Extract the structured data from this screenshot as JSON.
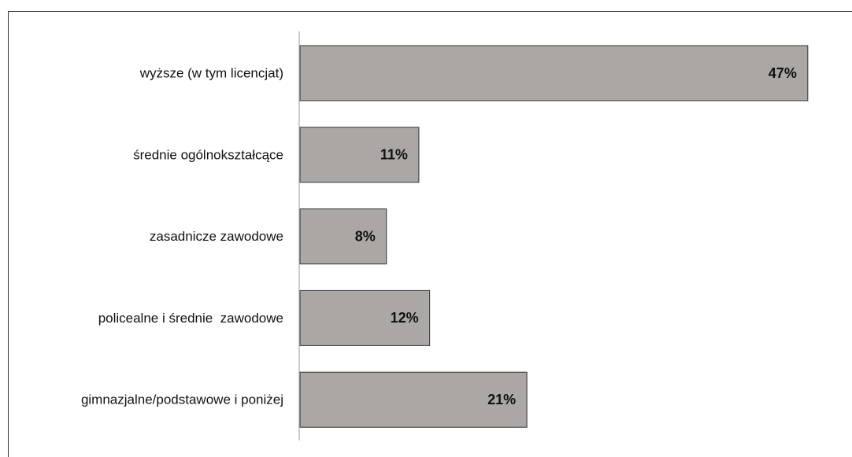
{
  "chart_data": {
    "type": "bar",
    "orientation": "horizontal",
    "categories": [
      "wyższe (w tym licencjat)",
      "średnie ogólnokształcące",
      "zasadnicze zawodowe",
      "policealne i średnie  zawodowe",
      "gimnazjalne/podstawowe i poniżej"
    ],
    "values": [
      47,
      11,
      8,
      12,
      21
    ],
    "value_labels": [
      "47%",
      "11%",
      "8%",
      "12%",
      "21%"
    ],
    "color": "#aba7a5"
  }
}
